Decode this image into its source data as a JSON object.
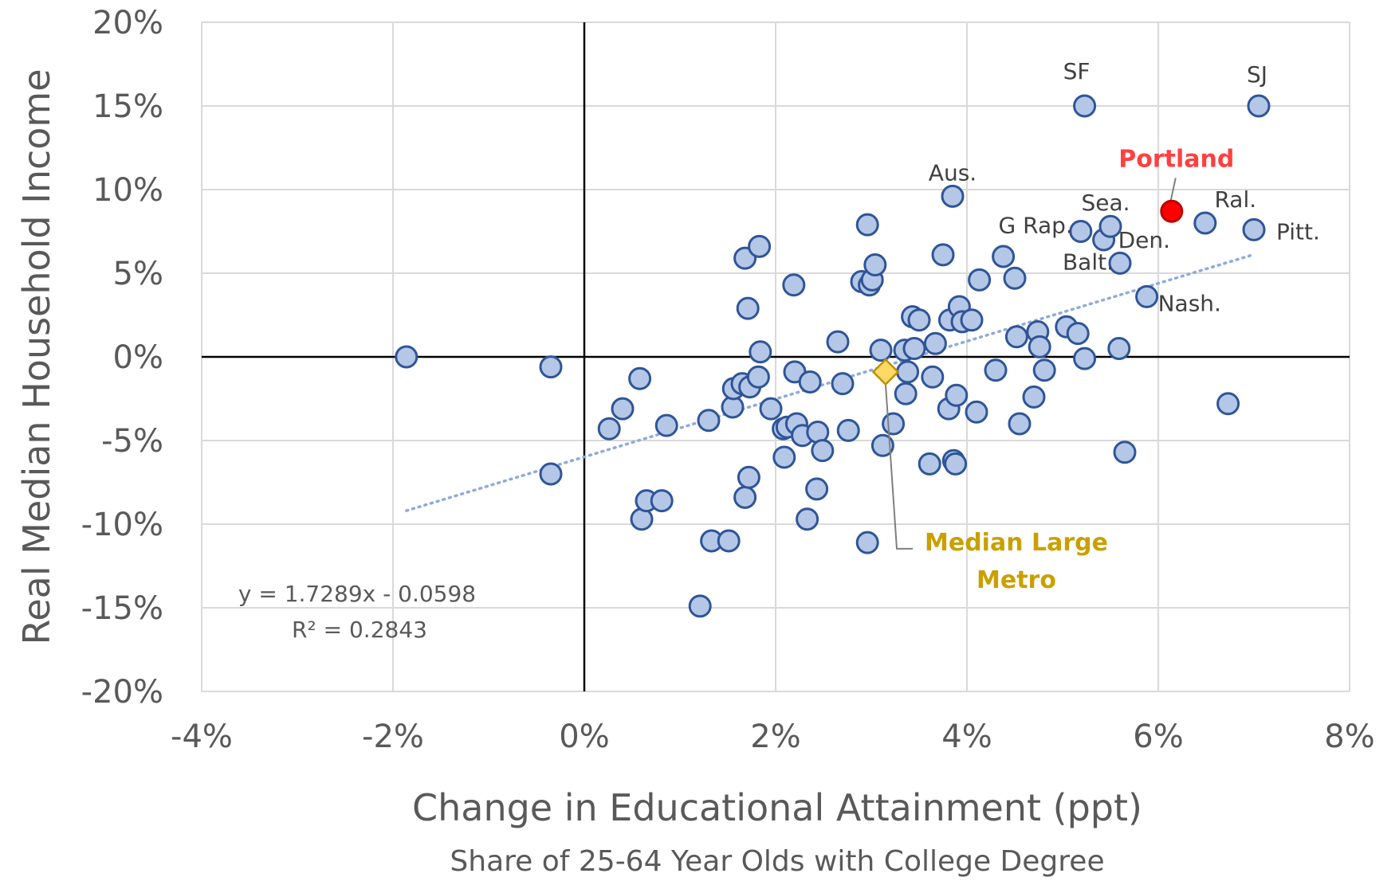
{
  "chart_data": {
    "type": "scatter",
    "xlabel": "Change in Educational Attainment (ppt)",
    "xsublabel": "Share of 25-64 Year Olds with College Degree",
    "ylabel": "Real Median Household Income",
    "xlim": [
      -0.04,
      0.08
    ],
    "ylim": [
      -0.2,
      0.2
    ],
    "x_ticks": [
      {
        "value": -0.04,
        "label": "-4%"
      },
      {
        "value": -0.02,
        "label": "-2%"
      },
      {
        "value": 0.0,
        "label": "0%"
      },
      {
        "value": 0.02,
        "label": "2%"
      },
      {
        "value": 0.04,
        "label": "4%"
      },
      {
        "value": 0.06,
        "label": "6%"
      },
      {
        "value": 0.08,
        "label": "8%"
      }
    ],
    "y_ticks": [
      {
        "value": 0.2,
        "label": "20%"
      },
      {
        "value": 0.15,
        "label": "15%"
      },
      {
        "value": 0.1,
        "label": "10%"
      },
      {
        "value": 0.05,
        "label": "5%"
      },
      {
        "value": 0.0,
        "label": "0%"
      },
      {
        "value": -0.05,
        "label": "-5%"
      },
      {
        "value": -0.1,
        "label": "-10%"
      },
      {
        "value": -0.15,
        "label": "-15%"
      },
      {
        "value": -0.2,
        "label": "-20%"
      }
    ],
    "grid": true,
    "colors": {
      "point_fill": "#b4c7e7",
      "point_stroke": "#2f5597",
      "portland": "#ff0000",
      "portland_label": "#ff4040",
      "median": "#ffd966",
      "median_label": "#c9a000",
      "trendline": "#8faadc",
      "grid": "#d9d9d9",
      "axis": "#000000"
    },
    "points": [
      {
        "x": -0.0186,
        "y": 0.0
      },
      {
        "x": -0.0035,
        "y": -0.006
      },
      {
        "x": -0.0035,
        "y": -0.07
      },
      {
        "x": 0.0026,
        "y": -0.043
      },
      {
        "x": 0.004,
        "y": -0.031
      },
      {
        "x": 0.0058,
        "y": -0.013
      },
      {
        "x": 0.006,
        "y": -0.097
      },
      {
        "x": 0.0065,
        "y": -0.086
      },
      {
        "x": 0.0081,
        "y": -0.086
      },
      {
        "x": 0.0086,
        "y": -0.041
      },
      {
        "x": 0.0121,
        "y": -0.149
      },
      {
        "x": 0.013,
        "y": -0.038
      },
      {
        "x": 0.0133,
        "y": -0.11
      },
      {
        "x": 0.0151,
        "y": -0.11
      },
      {
        "x": 0.0155,
        "y": -0.03
      },
      {
        "x": 0.0156,
        "y": -0.019
      },
      {
        "x": 0.0165,
        "y": -0.016
      },
      {
        "x": 0.0168,
        "y": -0.084
      },
      {
        "x": 0.0168,
        "y": 0.059
      },
      {
        "x": 0.0171,
        "y": 0.029
      },
      {
        "x": 0.0172,
        "y": -0.072
      },
      {
        "x": 0.0173,
        "y": -0.018
      },
      {
        "x": 0.0182,
        "y": -0.012
      },
      {
        "x": 0.0183,
        "y": 0.066
      },
      {
        "x": 0.0184,
        "y": 0.003
      },
      {
        "x": 0.0195,
        "y": -0.031
      },
      {
        "x": 0.0208,
        "y": -0.043
      },
      {
        "x": 0.0209,
        "y": -0.06
      },
      {
        "x": 0.0212,
        "y": -0.042
      },
      {
        "x": 0.0219,
        "y": 0.043
      },
      {
        "x": 0.022,
        "y": -0.009
      },
      {
        "x": 0.0222,
        "y": -0.04
      },
      {
        "x": 0.0228,
        "y": -0.047
      },
      {
        "x": 0.0233,
        "y": -0.097
      },
      {
        "x": 0.0236,
        "y": -0.015
      },
      {
        "x": 0.0243,
        "y": -0.079
      },
      {
        "x": 0.0244,
        "y": -0.045
      },
      {
        "x": 0.0249,
        "y": -0.056
      },
      {
        "x": 0.0265,
        "y": 0.009
      },
      {
        "x": 0.027,
        "y": -0.016
      },
      {
        "x": 0.0276,
        "y": -0.044
      },
      {
        "x": 0.029,
        "y": 0.045
      },
      {
        "x": 0.0296,
        "y": 0.079
      },
      {
        "x": 0.0296,
        "y": -0.111
      },
      {
        "x": 0.0298,
        "y": 0.043
      },
      {
        "x": 0.0301,
        "y": 0.046
      },
      {
        "x": 0.0304,
        "y": 0.055
      },
      {
        "x": 0.031,
        "y": 0.004
      },
      {
        "x": 0.0312,
        "y": -0.053
      },
      {
        "x": 0.0323,
        "y": -0.04
      },
      {
        "x": 0.0335,
        "y": 0.004
      },
      {
        "x": 0.0336,
        "y": -0.022
      },
      {
        "x": 0.0338,
        "y": -0.009
      },
      {
        "x": 0.0343,
        "y": 0.024
      },
      {
        "x": 0.0345,
        "y": 0.005
      },
      {
        "x": 0.035,
        "y": 0.022
      },
      {
        "x": 0.0361,
        "y": -0.064
      },
      {
        "x": 0.0364,
        "y": -0.012
      },
      {
        "x": 0.0367,
        "y": 0.008
      },
      {
        "x": 0.0375,
        "y": 0.061
      },
      {
        "x": 0.0381,
        "y": -0.031
      },
      {
        "x": 0.0382,
        "y": 0.022
      },
      {
        "x": 0.0385,
        "y": 0.096
      },
      {
        "x": 0.0386,
        "y": -0.062
      },
      {
        "x": 0.0388,
        "y": -0.064
      },
      {
        "x": 0.0389,
        "y": -0.023
      },
      {
        "x": 0.0392,
        "y": 0.03
      },
      {
        "x": 0.0395,
        "y": 0.021
      },
      {
        "x": 0.0405,
        "y": 0.022
      },
      {
        "x": 0.041,
        "y": -0.033
      },
      {
        "x": 0.0413,
        "y": 0.046
      },
      {
        "x": 0.043,
        "y": -0.008
      },
      {
        "x": 0.0438,
        "y": 0.06
      },
      {
        "x": 0.045,
        "y": 0.047
      },
      {
        "x": 0.0452,
        "y": 0.012
      },
      {
        "x": 0.0455,
        "y": -0.04
      },
      {
        "x": 0.047,
        "y": -0.024
      },
      {
        "x": 0.0474,
        "y": 0.015
      },
      {
        "x": 0.0476,
        "y": 0.006
      },
      {
        "x": 0.0481,
        "y": -0.008
      },
      {
        "x": 0.0504,
        "y": 0.018
      },
      {
        "x": 0.0516,
        "y": 0.014
      },
      {
        "x": 0.0519,
        "y": 0.075
      },
      {
        "x": 0.0523,
        "y": 0.15
      },
      {
        "x": 0.0523,
        "y": -0.001
      },
      {
        "x": 0.0543,
        "y": 0.07
      },
      {
        "x": 0.055,
        "y": 0.078
      },
      {
        "x": 0.0559,
        "y": 0.005
      },
      {
        "x": 0.056,
        "y": 0.056
      },
      {
        "x": 0.0565,
        "y": -0.057
      },
      {
        "x": 0.0588,
        "y": 0.036
      },
      {
        "x": 0.0649,
        "y": 0.08
      },
      {
        "x": 0.0673,
        "y": -0.028
      },
      {
        "x": 0.07,
        "y": 0.076
      },
      {
        "x": 0.0705,
        "y": 0.15
      }
    ],
    "highlight": {
      "name": "Portland",
      "x": 0.0614,
      "y": 0.087
    },
    "median": {
      "name_lines": [
        "Median Large",
        "Metro"
      ],
      "x": 0.0315,
      "y": -0.009
    },
    "trendline": {
      "slope": 1.7289,
      "intercept": -0.0598,
      "x_range": [
        -0.0186,
        0.07
      ],
      "style": "dotted"
    },
    "annotations": [
      {
        "text": "SF",
        "x": 0.0523,
        "y": 0.15
      },
      {
        "text": "SJ",
        "x": 0.0705,
        "y": 0.15
      },
      {
        "text": "Aus.",
        "x": 0.0385,
        "y": 0.096
      },
      {
        "text": "Sea.",
        "x": 0.055,
        "y": 0.078
      },
      {
        "text": "Ral.",
        "x": 0.0649,
        "y": 0.08
      },
      {
        "text": "G Rap.",
        "x": 0.0519,
        "y": 0.075
      },
      {
        "text": "Pitt.",
        "x": 0.07,
        "y": 0.076
      },
      {
        "text": "Den.",
        "x": 0.0543,
        "y": 0.07
      },
      {
        "text": "Balt.",
        "x": 0.056,
        "y": 0.056
      },
      {
        "text": "Nash.",
        "x": 0.0588,
        "y": 0.036
      }
    ],
    "equation": "y = 1.7289x - 0.0598",
    "r_squared": "R² = 0.2843"
  }
}
